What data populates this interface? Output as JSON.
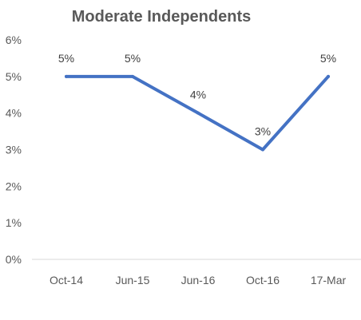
{
  "chart_data": {
    "type": "line",
    "title": "Moderate Independents",
    "xlabel": "",
    "ylabel": "",
    "categories": [
      "Oct-14",
      "Jun-15",
      "Jun-16",
      "Oct-16",
      "17-Mar"
    ],
    "series": [
      {
        "values": [
          5,
          5,
          4,
          3,
          5
        ],
        "data_labels": [
          "5%",
          "5%",
          "4%",
          "3%",
          "5%"
        ],
        "color": "#4472C4"
      }
    ],
    "ylim": [
      0,
      6
    ],
    "y_ticks": [
      0,
      1,
      2,
      3,
      4,
      5,
      6
    ],
    "y_tick_labels": [
      "0%",
      "1%",
      "2%",
      "3%",
      "4%",
      "5%",
      "6%"
    ],
    "grid": false,
    "legend": "none"
  },
  "colors": {
    "axis_line": "#d9d9d9",
    "text": "#595959",
    "series": "#4472C4"
  }
}
